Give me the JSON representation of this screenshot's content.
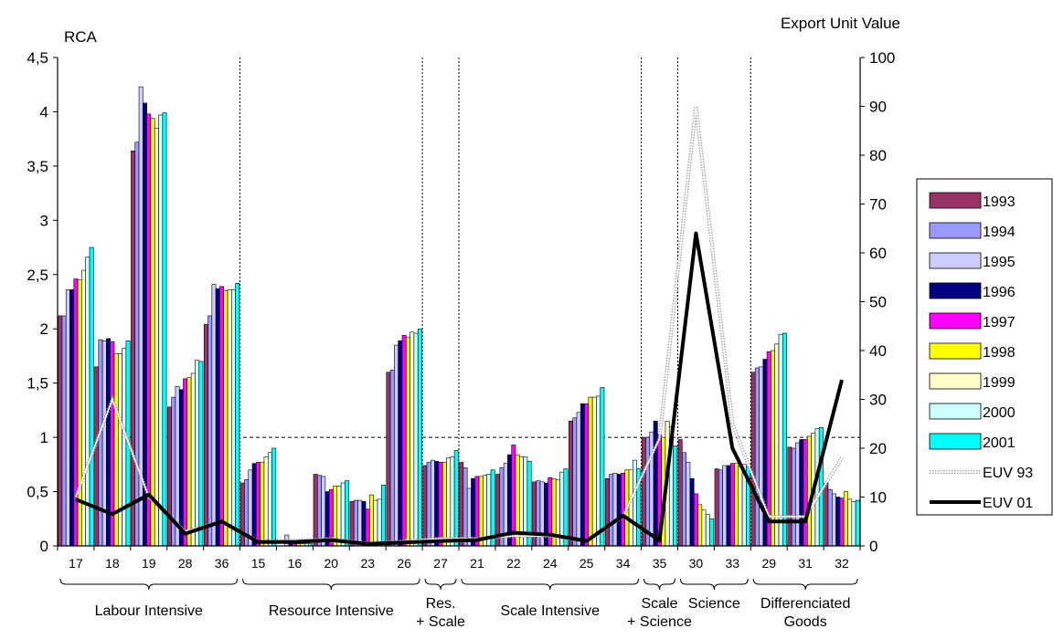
{
  "chart_data": {
    "type": "bar",
    "left_axis_label": "RCA",
    "right_axis_label": "Export Unit Value",
    "ylim_left": [
      0,
      4.5
    ],
    "ylim_right": [
      0,
      100
    ],
    "yticks_left": [
      "0",
      "0,5",
      "1",
      "1,5",
      "2",
      "2,5",
      "3",
      "3,5",
      "4",
      "4,5"
    ],
    "yticks_right": [
      "0",
      "10",
      "20",
      "30",
      "40",
      "50",
      "60",
      "70",
      "80",
      "90",
      "100"
    ],
    "reference_line": 1,
    "categories": [
      "17",
      "18",
      "19",
      "28",
      "36",
      "15",
      "16",
      "20",
      "23",
      "26",
      "27",
      "21",
      "22",
      "24",
      "25",
      "34",
      "35",
      "30",
      "33",
      "29",
      "31",
      "32"
    ],
    "series": [
      {
        "name": "1993",
        "color": "#993366",
        "values": [
          2.12,
          1.65,
          3.64,
          1.28,
          2.04,
          0.58,
          0,
          0.66,
          0.41,
          1.6,
          0.74,
          0.77,
          0.66,
          0.59,
          1.15,
          0.62,
          1.0,
          0.98,
          0.71,
          1.6,
          0.91,
          0.58
        ]
      },
      {
        "name": "1994",
        "color": "#9999ff",
        "values": [
          2.12,
          1.9,
          3.72,
          1.37,
          2.12,
          0.61,
          0,
          0.65,
          0.42,
          1.62,
          0.77,
          0.72,
          0.72,
          0.6,
          1.18,
          0.66,
          1.0,
          0.86,
          0.7,
          1.64,
          0.9,
          0.52
        ]
      },
      {
        "name": "1995",
        "color": "#ccccff",
        "values": [
          2.36,
          1.89,
          4.23,
          1.47,
          2.41,
          0.7,
          0.1,
          0.64,
          0.42,
          1.85,
          0.79,
          0.53,
          0.76,
          0.59,
          1.23,
          0.67,
          1.05,
          0.77,
          0.74,
          1.65,
          0.95,
          0.48
        ]
      },
      {
        "name": "1996",
        "color": "#000080",
        "values": [
          2.36,
          1.91,
          4.08,
          1.44,
          2.37,
          0.76,
          0.02,
          0.5,
          0.41,
          1.89,
          0.78,
          0.62,
          0.84,
          0.58,
          1.31,
          0.66,
          1.15,
          0.62,
          0.74,
          1.72,
          0.98,
          0.45
        ]
      },
      {
        "name": "1997",
        "color": "#ff00ff",
        "values": [
          2.46,
          1.88,
          3.98,
          1.54,
          2.39,
          0.77,
          0.02,
          0.52,
          0.34,
          1.94,
          0.77,
          0.64,
          0.93,
          0.63,
          1.31,
          0.67,
          1.03,
          0.48,
          0.76,
          1.79,
          0.98,
          0.44
        ]
      },
      {
        "name": "1998",
        "color": "#ffff00",
        "values": [
          2.45,
          1.77,
          3.94,
          1.55,
          2.35,
          0.77,
          0.02,
          0.55,
          0.47,
          1.92,
          0.77,
          0.64,
          0.84,
          0.62,
          1.37,
          0.7,
          1.0,
          0.38,
          0.76,
          1.8,
          1.01,
          0.5
        ]
      },
      {
        "name": "1999",
        "color": "#ffffcc",
        "values": [
          2.54,
          1.77,
          3.85,
          1.59,
          2.36,
          0.82,
          0.02,
          0.55,
          0.42,
          1.97,
          0.81,
          0.65,
          0.82,
          0.61,
          1.37,
          0.7,
          1.15,
          0.33,
          0.73,
          1.86,
          1.04,
          0.43
        ]
      },
      {
        "name": "2000",
        "color": "#ccffff",
        "values": [
          2.66,
          1.82,
          3.97,
          1.71,
          2.36,
          0.86,
          0.02,
          0.58,
          0.43,
          1.96,
          0.82,
          0.66,
          0.82,
          0.68,
          1.38,
          0.79,
          1.1,
          0.29,
          0.75,
          1.95,
          1.08,
          0.41
        ]
      },
      {
        "name": "2001",
        "color": "#00ffff",
        "values": [
          2.75,
          1.89,
          3.99,
          1.7,
          2.42,
          0.9,
          0.02,
          0.6,
          0.56,
          2.0,
          0.88,
          0.7,
          0.78,
          0.71,
          1.46,
          0.71,
          0.92,
          0.25,
          0.73,
          1.96,
          1.09,
          0.42
        ]
      }
    ],
    "lines": [
      {
        "name": "EUV 93",
        "style": "dotted",
        "color": "#888888",
        "values": [
          10,
          30,
          10,
          3,
          5,
          1,
          1,
          1.5,
          0.5,
          1,
          1.5,
          1.5,
          2,
          2,
          1,
          6,
          22,
          90,
          25,
          6,
          6,
          18
        ]
      },
      {
        "name": "EUV 01",
        "style": "solid",
        "color": "#000000",
        "values": [
          9.5,
          6.5,
          10.5,
          2.5,
          5,
          0.8,
          0.8,
          1.2,
          0.4,
          0.7,
          1.0,
          1.2,
          2.7,
          2.3,
          1.0,
          6.2,
          1.1,
          64,
          20,
          5,
          5,
          34
        ]
      }
    ],
    "separator_after_indices": [
      4,
      9,
      10,
      15,
      16,
      18
    ],
    "groups": [
      {
        "label": "Labour Intensive",
        "start": 0,
        "end": 4
      },
      {
        "label": "Resource Intensive",
        "start": 5,
        "end": 9
      },
      {
        "label": "Res. + Scale",
        "start": 10,
        "end": 10
      },
      {
        "label": "Scale Intensive",
        "start": 11,
        "end": 15
      },
      {
        "label": "Scale + Science",
        "start": 16,
        "end": 16
      },
      {
        "label": "Science",
        "start": 17,
        "end": 18
      },
      {
        "label": "Differenciated Goods",
        "start": 19,
        "end": 21
      }
    ],
    "legend_position": "right"
  }
}
